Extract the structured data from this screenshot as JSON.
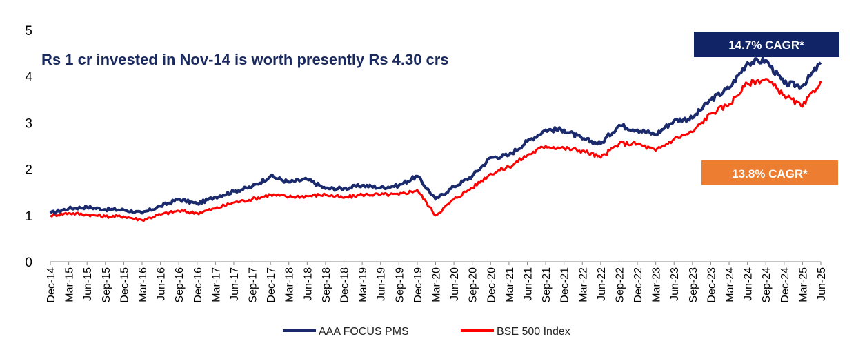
{
  "headline": "Rs 1 cr invested in Nov-14 is worth presently Rs 4.30 crs",
  "badges": {
    "pms": "14.7% CAGR*",
    "index": "13.8% CAGR*"
  },
  "colors": {
    "pms": "#1a2a6c",
    "index": "#ff0000",
    "badge_pms": "#102466",
    "badge_index": "#ed7d31",
    "headline": "#1a2a5e"
  },
  "chart_data": {
    "type": "line",
    "title": "Rs 1 cr invested in Nov-14 is worth presently Rs 4.30 crs",
    "xlabel": "",
    "ylabel": "",
    "ylim": [
      0,
      5
    ],
    "yticks": [
      0,
      1,
      2,
      3,
      4,
      5
    ],
    "legend_position": "bottom",
    "grid": false,
    "x": [
      "Dec-14",
      "Mar-15",
      "Jun-15",
      "Sep-15",
      "Dec-15",
      "Mar-16",
      "Jun-16",
      "Sep-16",
      "Dec-16",
      "Mar-17",
      "Jun-17",
      "Sep-17",
      "Dec-17",
      "Mar-18",
      "Jun-18",
      "Sep-18",
      "Dec-18",
      "Mar-19",
      "Jun-19",
      "Sep-19",
      "Dec-19",
      "Mar-20",
      "Jun-20",
      "Sep-20",
      "Dec-20",
      "Mar-21",
      "Jun-21",
      "Sep-21",
      "Dec-21",
      "Mar-22",
      "Jun-22",
      "Sep-22",
      "Dec-22",
      "Mar-23",
      "Jun-23",
      "Sep-23",
      "Dec-23",
      "Mar-24",
      "Jun-24",
      "Sep-24",
      "Dec-24",
      "Mar-25",
      "Jun-25"
    ],
    "series": [
      {
        "name": "AAA FOCUS PMS",
        "values": [
          1.05,
          1.15,
          1.18,
          1.13,
          1.12,
          1.05,
          1.2,
          1.35,
          1.25,
          1.4,
          1.52,
          1.62,
          1.85,
          1.72,
          1.78,
          1.58,
          1.58,
          1.65,
          1.6,
          1.65,
          1.85,
          1.35,
          1.62,
          1.85,
          2.25,
          2.3,
          2.6,
          2.85,
          2.85,
          2.65,
          2.55,
          2.95,
          2.85,
          2.75,
          3.05,
          3.1,
          3.5,
          3.75,
          4.3,
          4.35,
          3.85,
          3.8,
          4.3
        ]
      },
      {
        "name": "BSE 500 Index",
        "values": [
          1.0,
          1.05,
          1.02,
          0.98,
          0.98,
          0.9,
          1.02,
          1.1,
          1.05,
          1.15,
          1.28,
          1.35,
          1.45,
          1.4,
          1.42,
          1.45,
          1.38,
          1.45,
          1.45,
          1.45,
          1.55,
          1.0,
          1.35,
          1.6,
          1.9,
          2.05,
          2.3,
          2.5,
          2.45,
          2.4,
          2.25,
          2.55,
          2.55,
          2.4,
          2.65,
          2.8,
          3.2,
          3.4,
          3.85,
          3.95,
          3.6,
          3.35,
          3.9
        ]
      }
    ]
  },
  "legend": {
    "pms": "AAA FOCUS PMS",
    "index": "BSE 500 Index"
  }
}
